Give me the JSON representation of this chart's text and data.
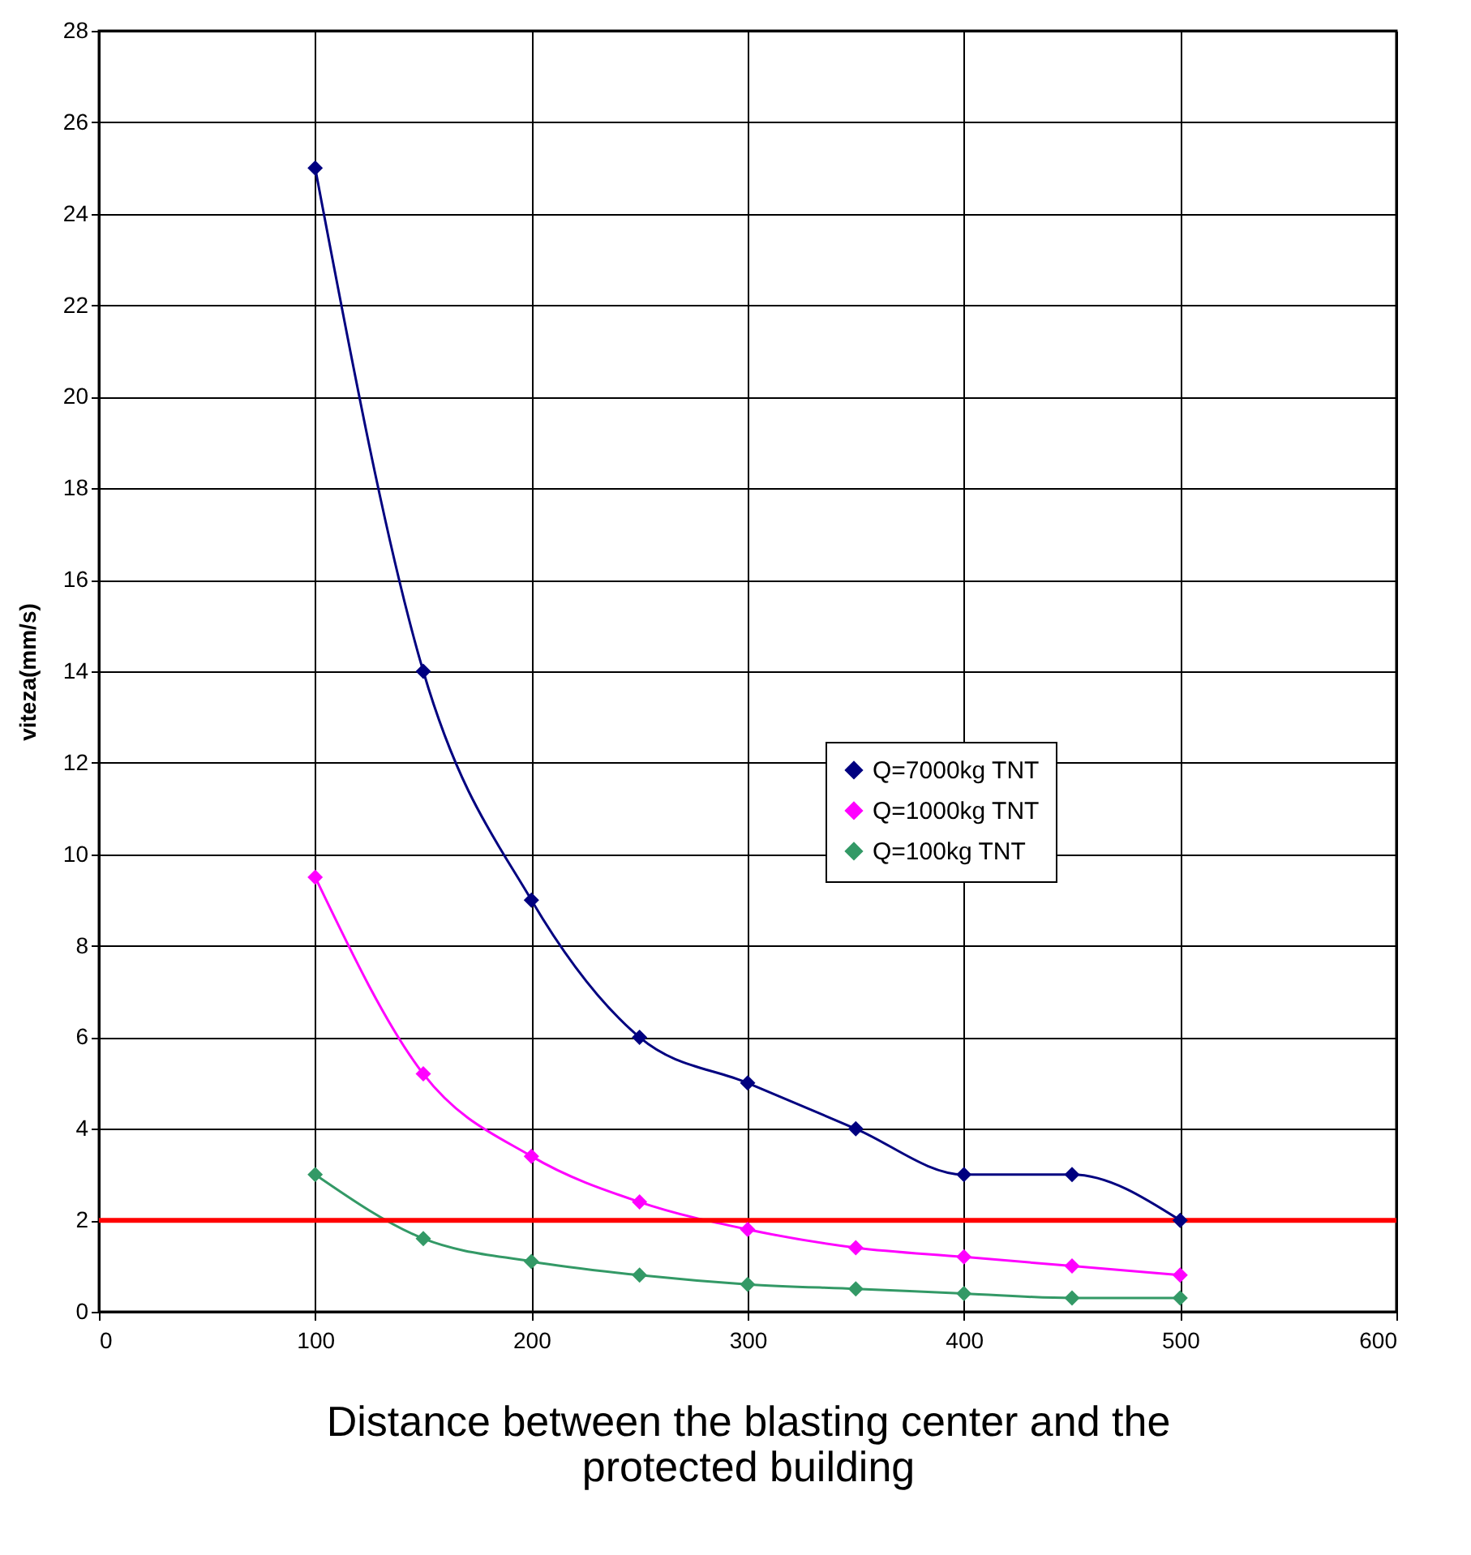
{
  "chart_data": {
    "type": "line",
    "xlabel": "Distance between the blasting center and the protected building",
    "ylabel": "viteza(mm/s)",
    "x": [
      100,
      150,
      200,
      250,
      300,
      350,
      400,
      450,
      500
    ],
    "series": [
      {
        "name": "Q=7000kg TNT",
        "color": "#000080",
        "values": [
          25,
          14,
          9,
          6,
          5,
          4,
          3,
          3,
          2
        ]
      },
      {
        "name": "Q=1000kg TNT",
        "color": "#ff00ff",
        "values": [
          9.5,
          5.2,
          3.4,
          2.4,
          1.8,
          1.4,
          1.2,
          1.0,
          0.8
        ]
      },
      {
        "name": "Q=100kg TNT",
        "color": "#339966",
        "values": [
          3,
          1.6,
          1.1,
          0.8,
          0.6,
          0.5,
          0.4,
          0.3,
          0.3
        ]
      }
    ],
    "xlim": [
      0,
      600
    ],
    "xticks": [
      0,
      100,
      200,
      300,
      400,
      500,
      600
    ],
    "ylim": [
      0,
      28
    ],
    "yticks": [
      0,
      2,
      4,
      6,
      8,
      10,
      12,
      14,
      16,
      18,
      20,
      22,
      24,
      26,
      28
    ],
    "ref_lines": [
      {
        "axis": "y",
        "value": 2,
        "color": "#ff0000"
      }
    ],
    "grid": true,
    "legend": "right",
    "marker": "diamond",
    "line_style": "solid"
  }
}
